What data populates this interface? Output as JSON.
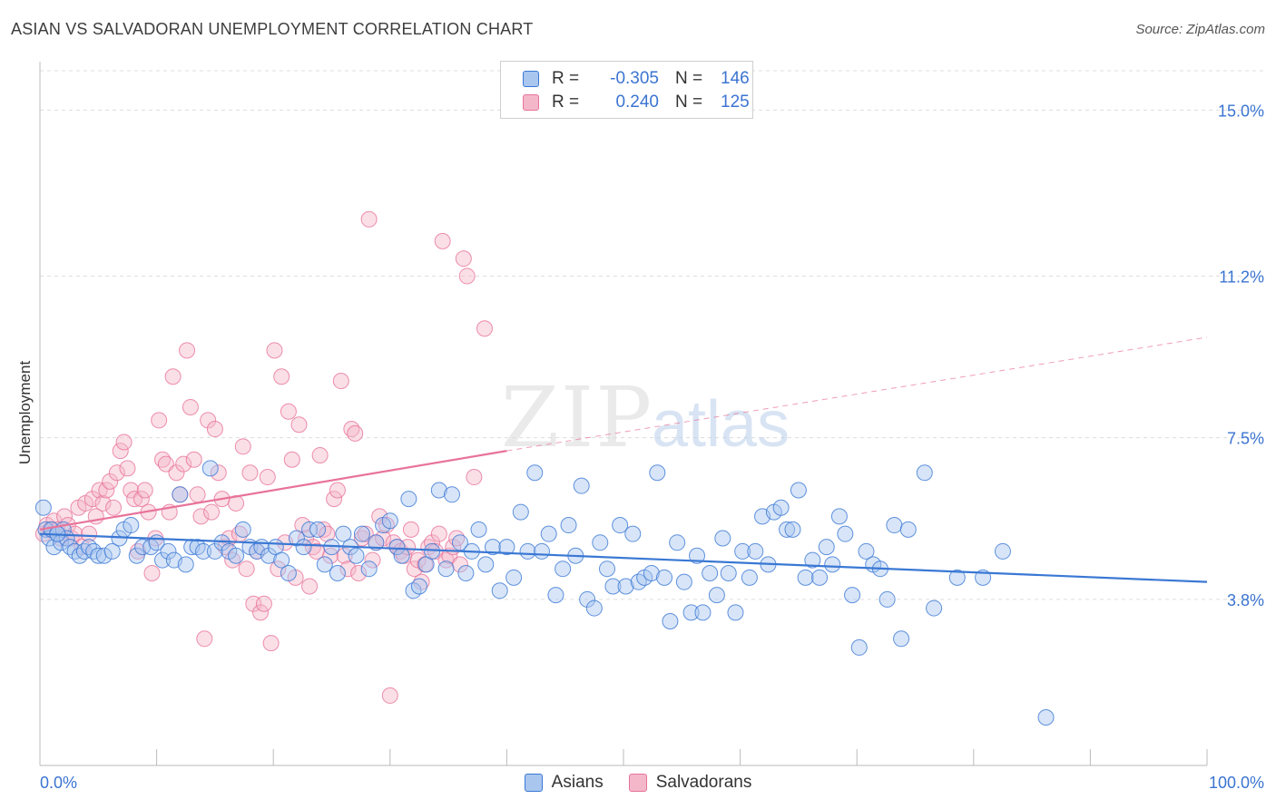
{
  "title": "ASIAN VS SALVADORAN UNEMPLOYMENT CORRELATION CHART",
  "source": "Source: ZipAtlas.com",
  "watermark": {
    "zip": "ZIP",
    "atlas": "atlas"
  },
  "legend": [
    {
      "r_label": "R =",
      "r_value": "-0.305",
      "n_label": "N =",
      "n_value": "146"
    },
    {
      "r_label": "R =",
      "r_value": "0.240",
      "n_label": "N =",
      "n_value": "125"
    }
  ],
  "colors": {
    "asians": "#3a78d4",
    "salvadorans": "#e8739a",
    "asians_fill": "#a9c6ef",
    "salvadorans_fill": "#f4b7ca"
  },
  "chart_data": {
    "type": "scatter",
    "title": "ASIAN VS SALVADORAN UNEMPLOYMENT CORRELATION CHART",
    "xlabel": "",
    "ylabel": "Unemployment",
    "x_unit": "%",
    "xlim": [
      0,
      100
    ],
    "ylim": [
      0,
      15
    ],
    "x_tick_labels": [
      "0.0%",
      "100.0%"
    ],
    "y_ticks": [
      3.8,
      7.5,
      11.2,
      15.0
    ],
    "y_tick_labels": [
      "3.8%",
      "7.5%",
      "11.2%",
      "15.0%"
    ],
    "grid": true,
    "legend_position": "top-center",
    "series": [
      {
        "name": "Asians",
        "trend": {
          "x": [
            0,
            100
          ],
          "y": [
            5.3,
            4.2
          ]
        },
        "points": [
          [
            0.3,
            5.9
          ],
          [
            0.5,
            5.4
          ],
          [
            0.8,
            5.2
          ],
          [
            1.0,
            5.4
          ],
          [
            1.2,
            5.0
          ],
          [
            1.5,
            5.3
          ],
          [
            1.8,
            5.1
          ],
          [
            2.0,
            5.4
          ],
          [
            2.3,
            5.2
          ],
          [
            2.6,
            5.0
          ],
          [
            3.0,
            4.9
          ],
          [
            3.4,
            4.8
          ],
          [
            3.8,
            4.9
          ],
          [
            4.2,
            5.0
          ],
          [
            4.6,
            4.9
          ],
          [
            5.0,
            4.8
          ],
          [
            5.5,
            4.8
          ],
          [
            6.2,
            4.9
          ],
          [
            6.8,
            5.2
          ],
          [
            7.2,
            5.4
          ],
          [
            7.8,
            5.5
          ],
          [
            8.3,
            4.8
          ],
          [
            8.8,
            5.0
          ],
          [
            9.5,
            5.0
          ],
          [
            10.0,
            5.1
          ],
          [
            10.5,
            4.7
          ],
          [
            11.0,
            4.9
          ],
          [
            11.5,
            4.7
          ],
          [
            12.0,
            6.2
          ],
          [
            12.5,
            4.6
          ],
          [
            13.0,
            5.0
          ],
          [
            13.5,
            5.0
          ],
          [
            14.0,
            4.9
          ],
          [
            14.6,
            6.8
          ],
          [
            15.0,
            4.9
          ],
          [
            15.6,
            5.1
          ],
          [
            16.2,
            4.9
          ],
          [
            16.8,
            4.8
          ],
          [
            17.4,
            5.4
          ],
          [
            18.0,
            5.0
          ],
          [
            18.6,
            4.9
          ],
          [
            19.0,
            5.0
          ],
          [
            19.6,
            4.8
          ],
          [
            20.2,
            5.0
          ],
          [
            20.7,
            4.7
          ],
          [
            21.3,
            4.4
          ],
          [
            22.0,
            5.2
          ],
          [
            22.6,
            5.0
          ],
          [
            23.1,
            5.4
          ],
          [
            23.8,
            5.4
          ],
          [
            24.4,
            4.6
          ],
          [
            25.0,
            5.0
          ],
          [
            25.5,
            4.4
          ],
          [
            26.0,
            5.3
          ],
          [
            26.6,
            5.0
          ],
          [
            27.1,
            4.8
          ],
          [
            27.6,
            5.3
          ],
          [
            28.2,
            4.5
          ],
          [
            28.8,
            5.1
          ],
          [
            29.4,
            5.5
          ],
          [
            30.0,
            5.6
          ],
          [
            30.6,
            5.0
          ],
          [
            31.0,
            4.8
          ],
          [
            31.6,
            6.1
          ],
          [
            32.0,
            4.0
          ],
          [
            32.5,
            4.1
          ],
          [
            33.1,
            4.6
          ],
          [
            33.6,
            4.9
          ],
          [
            34.2,
            6.3
          ],
          [
            34.8,
            4.5
          ],
          [
            35.3,
            6.2
          ],
          [
            36.0,
            5.1
          ],
          [
            36.5,
            4.4
          ],
          [
            37.0,
            4.9
          ],
          [
            37.6,
            5.4
          ],
          [
            38.2,
            4.6
          ],
          [
            38.8,
            5.0
          ],
          [
            39.4,
            4.0
          ],
          [
            40.0,
            5.0
          ],
          [
            40.6,
            4.3
          ],
          [
            41.2,
            5.8
          ],
          [
            41.8,
            4.9
          ],
          [
            42.4,
            6.7
          ],
          [
            43.0,
            4.9
          ],
          [
            43.6,
            5.3
          ],
          [
            44.2,
            3.9
          ],
          [
            44.8,
            4.5
          ],
          [
            45.3,
            5.5
          ],
          [
            45.9,
            4.8
          ],
          [
            46.4,
            6.4
          ],
          [
            46.9,
            3.8
          ],
          [
            47.5,
            3.6
          ],
          [
            48.0,
            5.1
          ],
          [
            48.6,
            4.5
          ],
          [
            49.1,
            4.1
          ],
          [
            49.7,
            5.5
          ],
          [
            50.2,
            4.1
          ],
          [
            50.8,
            5.3
          ],
          [
            51.3,
            4.2
          ],
          [
            51.8,
            4.3
          ],
          [
            52.4,
            4.4
          ],
          [
            52.9,
            6.7
          ],
          [
            53.5,
            4.3
          ],
          [
            54.0,
            3.3
          ],
          [
            54.6,
            5.1
          ],
          [
            55.2,
            4.2
          ],
          [
            55.8,
            3.5
          ],
          [
            56.3,
            4.8
          ],
          [
            56.8,
            3.5
          ],
          [
            57.4,
            4.4
          ],
          [
            58.0,
            3.9
          ],
          [
            58.5,
            5.2
          ],
          [
            59.0,
            4.4
          ],
          [
            59.6,
            3.5
          ],
          [
            60.2,
            4.9
          ],
          [
            60.8,
            4.3
          ],
          [
            61.3,
            4.9
          ],
          [
            61.9,
            5.7
          ],
          [
            62.4,
            4.6
          ],
          [
            62.9,
            5.8
          ],
          [
            63.5,
            5.9
          ],
          [
            64.0,
            5.4
          ],
          [
            64.5,
            5.4
          ],
          [
            65.0,
            6.3
          ],
          [
            65.6,
            4.3
          ],
          [
            66.2,
            4.7
          ],
          [
            66.8,
            4.3
          ],
          [
            67.4,
            5.0
          ],
          [
            67.9,
            4.6
          ],
          [
            68.5,
            5.7
          ],
          [
            69.0,
            5.3
          ],
          [
            69.6,
            3.9
          ],
          [
            70.2,
            2.7
          ],
          [
            70.8,
            4.9
          ],
          [
            71.4,
            4.6
          ],
          [
            72.0,
            4.5
          ],
          [
            72.6,
            3.8
          ],
          [
            73.2,
            5.5
          ],
          [
            73.8,
            2.9
          ],
          [
            74.4,
            5.4
          ],
          [
            75.8,
            6.7
          ],
          [
            76.6,
            3.6
          ],
          [
            78.6,
            4.3
          ],
          [
            80.8,
            4.3
          ],
          [
            86.2,
            1.1
          ],
          [
            82.5,
            4.9
          ],
          [
            1.5,
            5.3
          ]
        ]
      },
      {
        "name": "Salvadorans",
        "trend": {
          "x": [
            0,
            40
          ],
          "y": [
            5.4,
            7.2
          ]
        },
        "trend_extension": {
          "x": [
            40,
            100
          ],
          "y": [
            7.2,
            9.8
          ]
        },
        "points": [
          [
            0.3,
            5.3
          ],
          [
            0.6,
            5.5
          ],
          [
            0.9,
            5.4
          ],
          [
            1.2,
            5.6
          ],
          [
            1.5,
            5.4
          ],
          [
            1.8,
            5.2
          ],
          [
            2.1,
            5.7
          ],
          [
            2.4,
            5.5
          ],
          [
            2.7,
            5.2
          ],
          [
            3.0,
            5.3
          ],
          [
            3.3,
            5.9
          ],
          [
            3.6,
            5.0
          ],
          [
            3.9,
            6.0
          ],
          [
            4.2,
            5.3
          ],
          [
            4.5,
            6.1
          ],
          [
            4.8,
            5.7
          ],
          [
            5.1,
            6.3
          ],
          [
            5.4,
            6.0
          ],
          [
            5.7,
            6.3
          ],
          [
            6.0,
            6.5
          ],
          [
            6.3,
            5.9
          ],
          [
            6.6,
            6.7
          ],
          [
            6.9,
            7.2
          ],
          [
            7.2,
            7.4
          ],
          [
            7.5,
            6.8
          ],
          [
            7.8,
            6.3
          ],
          [
            8.1,
            6.1
          ],
          [
            8.4,
            4.9
          ],
          [
            8.7,
            6.1
          ],
          [
            9.0,
            6.3
          ],
          [
            9.3,
            5.8
          ],
          [
            9.6,
            4.4
          ],
          [
            9.9,
            5.2
          ],
          [
            10.2,
            7.9
          ],
          [
            10.5,
            7.0
          ],
          [
            10.8,
            6.9
          ],
          [
            11.1,
            5.8
          ],
          [
            11.4,
            8.9
          ],
          [
            11.7,
            6.7
          ],
          [
            12.0,
            6.2
          ],
          [
            12.3,
            6.9
          ],
          [
            12.6,
            9.5
          ],
          [
            12.9,
            8.2
          ],
          [
            13.2,
            7.0
          ],
          [
            13.5,
            6.2
          ],
          [
            13.8,
            5.7
          ],
          [
            14.1,
            2.9
          ],
          [
            14.4,
            7.9
          ],
          [
            14.7,
            5.8
          ],
          [
            15.0,
            7.7
          ],
          [
            15.3,
            6.7
          ],
          [
            15.6,
            6.1
          ],
          [
            15.9,
            5.0
          ],
          [
            16.2,
            5.2
          ],
          [
            16.5,
            4.7
          ],
          [
            16.8,
            6.0
          ],
          [
            17.1,
            5.3
          ],
          [
            17.4,
            7.3
          ],
          [
            17.7,
            4.5
          ],
          [
            18.0,
            6.7
          ],
          [
            18.3,
            3.7
          ],
          [
            18.6,
            4.9
          ],
          [
            18.9,
            3.5
          ],
          [
            19.2,
            3.7
          ],
          [
            19.5,
            6.6
          ],
          [
            19.8,
            2.8
          ],
          [
            20.1,
            9.5
          ],
          [
            20.4,
            4.5
          ],
          [
            20.7,
            8.9
          ],
          [
            21.0,
            5.1
          ],
          [
            21.3,
            8.1
          ],
          [
            21.6,
            7.0
          ],
          [
            21.9,
            4.3
          ],
          [
            22.2,
            7.8
          ],
          [
            22.5,
            5.5
          ],
          [
            22.8,
            5.2
          ],
          [
            23.1,
            4.1
          ],
          [
            23.4,
            5.0
          ],
          [
            23.7,
            4.9
          ],
          [
            24.0,
            7.1
          ],
          [
            24.3,
            5.4
          ],
          [
            24.6,
            5.3
          ],
          [
            24.9,
            4.8
          ],
          [
            25.2,
            6.1
          ],
          [
            25.5,
            6.3
          ],
          [
            25.8,
            8.8
          ],
          [
            26.1,
            4.8
          ],
          [
            26.4,
            4.5
          ],
          [
            26.7,
            7.7
          ],
          [
            27.0,
            7.6
          ],
          [
            27.3,
            4.4
          ],
          [
            27.6,
            5.2
          ],
          [
            27.9,
            5.3
          ],
          [
            28.2,
            12.5
          ],
          [
            28.5,
            4.7
          ],
          [
            28.8,
            5.1
          ],
          [
            29.1,
            5.7
          ],
          [
            29.4,
            5.2
          ],
          [
            29.7,
            5.5
          ],
          [
            30.0,
            1.6
          ],
          [
            30.3,
            5.1
          ],
          [
            30.6,
            5.0
          ],
          [
            30.9,
            4.9
          ],
          [
            31.2,
            4.8
          ],
          [
            31.5,
            5.0
          ],
          [
            31.8,
            5.4
          ],
          [
            32.1,
            4.5
          ],
          [
            32.4,
            4.7
          ],
          [
            32.7,
            4.2
          ],
          [
            33.0,
            4.6
          ],
          [
            33.3,
            5.0
          ],
          [
            33.6,
            5.1
          ],
          [
            33.9,
            4.9
          ],
          [
            34.2,
            5.3
          ],
          [
            34.5,
            12.0
          ],
          [
            34.8,
            4.7
          ],
          [
            35.1,
            4.8
          ],
          [
            35.4,
            5.0
          ],
          [
            35.7,
            5.2
          ],
          [
            36.0,
            4.6
          ],
          [
            36.3,
            11.6
          ],
          [
            36.6,
            11.2
          ],
          [
            37.2,
            6.6
          ],
          [
            38.1,
            10.0
          ]
        ]
      }
    ]
  }
}
